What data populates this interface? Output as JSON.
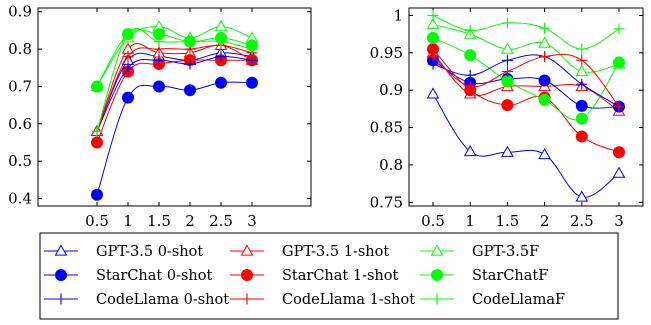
{
  "chart_data": [
    {
      "type": "line",
      "x": [
        0.5,
        1,
        1.5,
        2,
        2.5,
        3
      ],
      "xticks": [
        "0.5",
        "1",
        "1.5",
        "2",
        "2.5",
        "3"
      ],
      "yticks": [
        "0.4",
        "0.5",
        "0.6",
        "0.7",
        "0.8",
        "0.9"
      ],
      "xlim": [
        0.5,
        3
      ],
      "ylim": [
        0.38,
        0.91
      ],
      "grid": false,
      "series": [
        {
          "name": "GPT-3.5 0-shot",
          "color": "#0000ff",
          "marker": "triangle",
          "values": [
            0.58,
            0.77,
            0.78,
            0.77,
            0.79,
            0.78
          ]
        },
        {
          "name": "GPT-3.5 1-shot",
          "color": "#ff0000",
          "marker": "triangle",
          "values": [
            0.58,
            0.8,
            0.79,
            0.79,
            0.81,
            0.77
          ]
        },
        {
          "name": "GPT-3.5F",
          "color": "#00ff00",
          "marker": "triangle",
          "values": [
            0.7,
            0.83,
            0.86,
            0.83,
            0.86,
            0.83
          ]
        },
        {
          "name": "StarChat 0-shot",
          "color": "#0000ff",
          "marker": "circle",
          "values": [
            0.41,
            0.67,
            0.7,
            0.69,
            0.71,
            0.71
          ]
        },
        {
          "name": "StarChat 1-shot",
          "color": "#ff0000",
          "marker": "circle",
          "values": [
            0.55,
            0.74,
            0.76,
            0.77,
            0.77,
            0.77
          ]
        },
        {
          "name": "StarChatF",
          "color": "#00ff00",
          "marker": "circle",
          "values": [
            0.7,
            0.84,
            0.84,
            0.82,
            0.83,
            0.81
          ]
        },
        {
          "name": "CodeLlama 0-shot",
          "color": "#0000ff",
          "marker": "plus",
          "values": [
            0.58,
            0.75,
            0.77,
            0.76,
            0.78,
            0.77
          ]
        },
        {
          "name": "CodeLlama 1-shot",
          "color": "#ff0000",
          "marker": "plus",
          "values": [
            0.58,
            0.78,
            0.8,
            0.8,
            0.81,
            0.79
          ]
        },
        {
          "name": "CodeLlamaF",
          "color": "#00ff00",
          "marker": "plus",
          "values": [
            0.58,
            0.84,
            0.82,
            0.82,
            0.82,
            0.8
          ]
        }
      ]
    },
    {
      "type": "line",
      "x": [
        0.5,
        1,
        1.5,
        2,
        2.5,
        3
      ],
      "xticks": [
        "0.5",
        "1",
        "1.5",
        "2",
        "2.5",
        "3"
      ],
      "yticks": [
        "0.75",
        "0.8",
        "0.85",
        "0.9",
        "0.95",
        "1"
      ],
      "xlim": [
        0.5,
        3
      ],
      "ylim": [
        0.745,
        1.01
      ],
      "grid": false,
      "series": [
        {
          "name": "GPT-3.5 0-shot",
          "color": "#0000ff",
          "marker": "triangle",
          "values": [
            0.895,
            0.818,
            0.817,
            0.814,
            0.757,
            0.789
          ]
        },
        {
          "name": "GPT-3.5 1-shot",
          "color": "#ff0000",
          "marker": "triangle",
          "values": [
            0.95,
            0.895,
            0.905,
            0.905,
            0.905,
            0.872
          ]
        },
        {
          "name": "GPT-3.5F",
          "color": "#00ff00",
          "marker": "triangle",
          "values": [
            0.988,
            0.975,
            0.955,
            0.963,
            0.925,
            0.935
          ]
        },
        {
          "name": "StarChat 0-shot",
          "color": "#0000ff",
          "marker": "circle",
          "values": [
            0.94,
            0.91,
            0.915,
            0.913,
            0.879,
            0.878
          ]
        },
        {
          "name": "StarChat 1-shot",
          "color": "#ff0000",
          "marker": "circle",
          "values": [
            0.955,
            0.9,
            0.88,
            0.89,
            0.838,
            0.817
          ]
        },
        {
          "name": "StarChatF",
          "color": "#00ff00",
          "marker": "circle",
          "values": [
            0.97,
            0.947,
            0.912,
            0.887,
            0.862,
            0.937
          ]
        },
        {
          "name": "CodeLlama 0-shot",
          "color": "#0000ff",
          "marker": "plus",
          "values": [
            0.935,
            0.92,
            0.94,
            0.945,
            0.908,
            0.878
          ]
        },
        {
          "name": "CodeLlama 1-shot",
          "color": "#ff0000",
          "marker": "plus",
          "values": [
            0.945,
            0.905,
            0.925,
            0.945,
            0.94,
            0.878
          ]
        },
        {
          "name": "CodeLlamaF",
          "color": "#00ff00",
          "marker": "plus",
          "values": [
            1.0,
            0.98,
            0.99,
            0.983,
            0.955,
            0.982
          ]
        }
      ]
    }
  ],
  "legend": {
    "entries": [
      {
        "label": "GPT-3.5 0-shot",
        "color": "#0000ff",
        "marker": "triangle"
      },
      {
        "label": "GPT-3.5 1-shot",
        "color": "#ff0000",
        "marker": "triangle"
      },
      {
        "label": "GPT-3.5F",
        "color": "#00ff00",
        "marker": "triangle"
      },
      {
        "label": "StarChat 0-shot",
        "color": "#0000ff",
        "marker": "circle"
      },
      {
        "label": "StarChat 1-shot",
        "color": "#ff0000",
        "marker": "circle"
      },
      {
        "label": "StarChatF",
        "color": "#00ff00",
        "marker": "circle"
      },
      {
        "label": "CodeLlama 0-shot",
        "color": "#0000ff",
        "marker": "plus"
      },
      {
        "label": "CodeLlama 1-shot",
        "color": "#ff0000",
        "marker": "plus"
      },
      {
        "label": "CodeLlamaF",
        "color": "#00ff00",
        "marker": "plus"
      }
    ]
  }
}
